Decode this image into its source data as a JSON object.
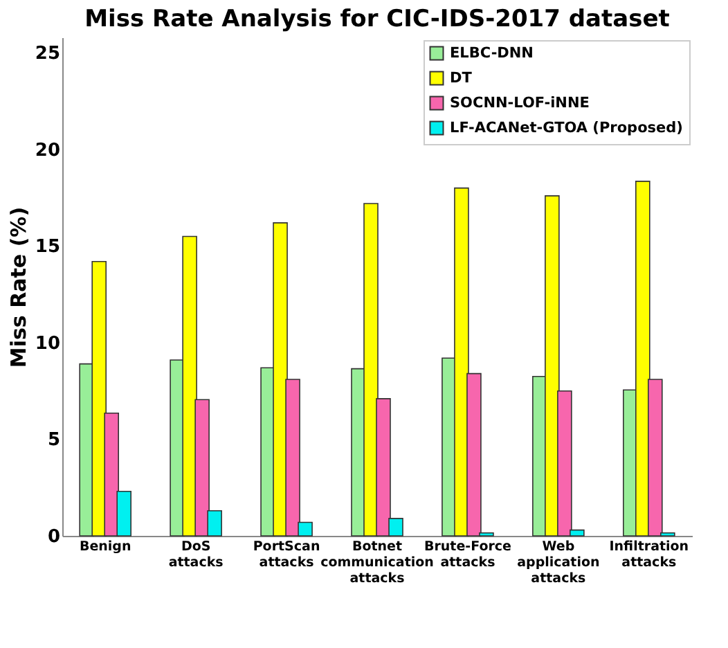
{
  "chart_data": {
    "type": "bar",
    "title": "Miss Rate Analysis for CIC-IDS-2017 dataset",
    "ylabel": "Miss Rate (%)",
    "categories": [
      "Benign",
      "DoS attacks",
      "PortScan attacks",
      "Botnet communication attacks",
      "Brute-Force attacks",
      "Web application attacks",
      "Infiltration attacks"
    ],
    "series": [
      {
        "name": "ELBC-DNN",
        "color": "#98ee98",
        "values": [
          8.9,
          9.1,
          8.7,
          8.65,
          9.2,
          8.25,
          7.55
        ]
      },
      {
        "name": "DT",
        "color": "#ffff00",
        "values": [
          14.2,
          15.5,
          16.2,
          17.2,
          18.0,
          17.6,
          18.35
        ]
      },
      {
        "name": "SOCNN-LOF-iNNE",
        "color": "#f766ad",
        "values": [
          6.35,
          7.05,
          8.1,
          7.1,
          8.4,
          7.5,
          8.1
        ]
      },
      {
        "name": "LF-ACANet-GTOA (Proposed)",
        "color": "#00f0f0",
        "values": [
          2.3,
          1.3,
          0.7,
          0.9,
          0.15,
          0.3,
          0.15
        ]
      }
    ],
    "ylim": [
      0,
      25.8
    ],
    "yticks": [
      0,
      5,
      10,
      15,
      20,
      25
    ],
    "grid": false,
    "legend": "top right"
  }
}
